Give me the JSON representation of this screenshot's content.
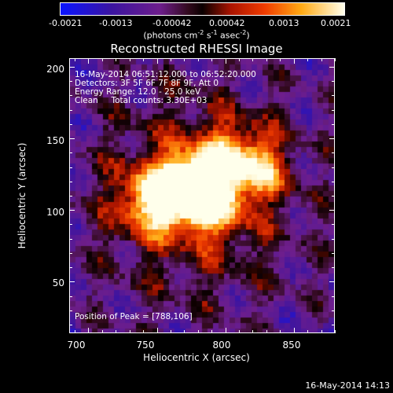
{
  "colorbar": {
    "ticks": [
      "-0.0021",
      "-0.0013",
      "-0.00042",
      "0.00042",
      "0.0013",
      "0.0021"
    ],
    "units": {
      "pre": "(photons cm",
      "e1": "-2",
      "mid1": " s",
      "e2": "-1",
      "mid2": " asec",
      "e3": "-2",
      "post": ")"
    },
    "range": [
      -0.0021,
      0.0021
    ]
  },
  "chart_data": {
    "type": "heatmap",
    "title": "Reconstructed RHESSI Image",
    "xlabel": "Heliocentric X (arcsec)",
    "ylabel": "Heliocentric Y (arcsec)",
    "xlim": [
      686,
      880
    ],
    "ylim": [
      14,
      206
    ],
    "x_ticks": [
      "700",
      "750",
      "800",
      "850"
    ],
    "y_ticks": [
      "50",
      "100",
      "150",
      "200"
    ],
    "peak": [
      788,
      106
    ],
    "sources": [
      {
        "x": 788,
        "y": 106,
        "intensity": 0.0021
      },
      {
        "x": 760,
        "y": 112,
        "intensity": 0.0019
      },
      {
        "x": 822,
        "y": 130,
        "intensity": 0.0019
      },
      {
        "x": 778,
        "y": 120,
        "intensity": 0.0016
      },
      {
        "x": 740,
        "y": 105,
        "intensity": 0.0014
      },
      {
        "x": 800,
        "y": 140,
        "intensity": 0.001
      }
    ]
  },
  "annotations": {
    "time_range": "16-May-2014 06:51:12.000 to 06:52:20.000",
    "detectors": "Detectors: 3F 5F 6F 7F 8F 9F, Att 0",
    "energy": "Energy Range: 12.0 - 25.0 keV",
    "clean": "Clean     Total counts: 3.30E+03",
    "peak_text": "Position of Peak = [788,106]"
  },
  "footer": {
    "timestamp": "16-May-2014 14:13"
  }
}
